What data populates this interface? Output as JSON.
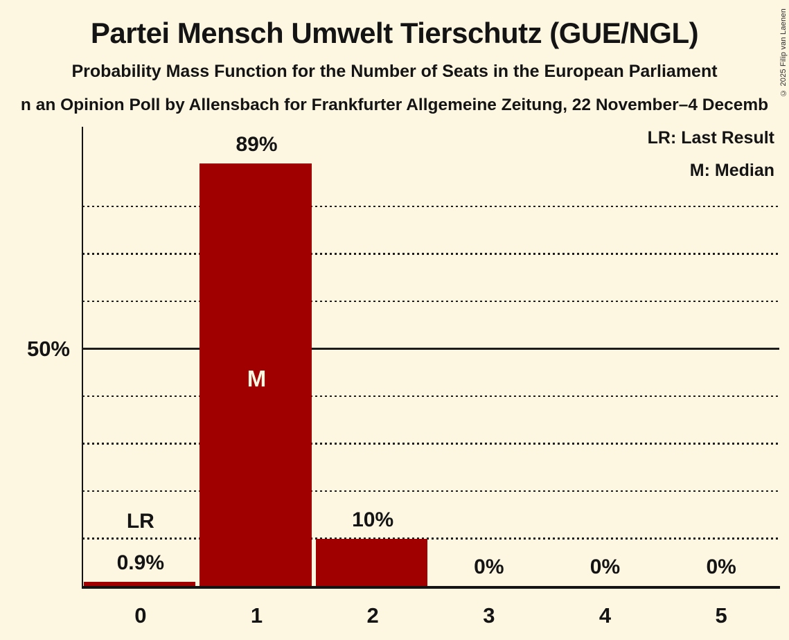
{
  "header": {
    "title": "Partei Mensch Umwelt Tierschutz (GUE/NGL)",
    "subtitle": "Probability Mass Function for the Number of Seats in the European Parliament",
    "source_line": "n an Opinion Poll by Allensbach for Frankfurter Allgemeine Zeitung, 22 November–4 Decemb"
  },
  "legend": {
    "lr_label": "LR: Last Result",
    "m_label": "M: Median"
  },
  "copyright": "© 2025 Filip van Laenen",
  "colors": {
    "background": "#FDF6E1",
    "bar": "#A00000",
    "text": "#141414",
    "inside_bar_text": "#FDF6E1"
  },
  "chart_data": {
    "type": "bar",
    "title": "Partei Mensch Umwelt Tierschutz (GUE/NGL)",
    "subtitle": "Probability Mass Function for the Number of Seats in the European Parliament",
    "categories": [
      "0",
      "1",
      "2",
      "3",
      "4",
      "5"
    ],
    "values": [
      0.9,
      89,
      10,
      0,
      0,
      0
    ],
    "bar_labels": [
      "0.9%",
      "89%",
      "10%",
      "0%",
      "0%",
      "0%"
    ],
    "y_axis_tick_label": "50%",
    "ylim_pct": [
      0,
      96.8
    ],
    "gridlines_pct": [
      10,
      20,
      30,
      40,
      60,
      70,
      80
    ],
    "solid_gridline_pct": 50,
    "grid": "dotted horizontal lines every 10%, solid line at 50%",
    "legend_position": "top-right",
    "annotations": [
      {
        "text": "LR",
        "seat": "0",
        "meaning": "Last Result"
      },
      {
        "text": "M",
        "seat": "1",
        "meaning": "Median"
      }
    ]
  }
}
